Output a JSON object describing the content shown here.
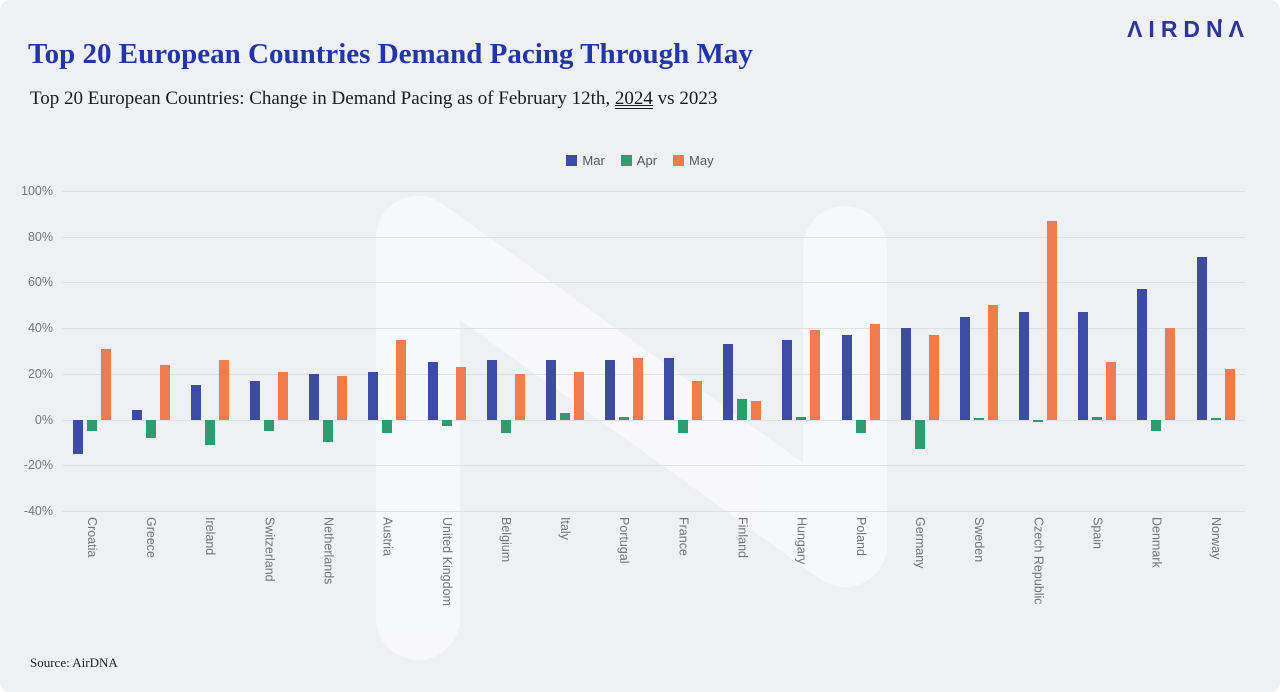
{
  "header": {
    "logo_text": "ΛIRDNΛ",
    "title": "Top 20 European Countries Demand Pacing Through May"
  },
  "subtitle": {
    "prefix": "Top 20 European Countries: Change in Demand Pacing as of February 12th, ",
    "underlined": "2024",
    "suffix": " vs 2023"
  },
  "footer": {
    "source": "Source: AirDNA"
  },
  "chart_data": {
    "type": "bar",
    "title": "Top 20 European Countries Demand Pacing Through May",
    "subtitle": "Top 20 European Countries: Change in Demand Pacing as of February 12th, 2024 vs 2023",
    "categories": [
      "Croatia",
      "Greece",
      "Ireland",
      "Switzerland",
      "Netherlands",
      "Austria",
      "United Kingdom",
      "Belgium",
      "Italy",
      "Portugal",
      "France",
      "Finland",
      "Hungary",
      "Poland",
      "Germany",
      "Sweden",
      "Czech Republic",
      "Spain",
      "Denmark",
      "Norway"
    ],
    "series": [
      {
        "name": "Mar",
        "color": "#3c4ba3",
        "values": [
          -15,
          4,
          15,
          17,
          20,
          21,
          25,
          26,
          26,
          26,
          27,
          33,
          35,
          37,
          40,
          45,
          47,
          47,
          57,
          71
        ]
      },
      {
        "name": "Apr",
        "color": "#2e9c6e",
        "values": [
          -5,
          -8,
          -11,
          -5,
          -10,
          -6,
          -3,
          -6,
          3,
          1,
          -6,
          9,
          1,
          -6,
          -13,
          0.5,
          -1,
          1,
          -5,
          0.5
        ]
      },
      {
        "name": "May",
        "color": "#f07c4d",
        "values": [
          31,
          24,
          26,
          21,
          19,
          35,
          23,
          20,
          21,
          27,
          17,
          8,
          39,
          42,
          37,
          50,
          87,
          25,
          40,
          22
        ]
      }
    ],
    "ylim": [
      -40,
      100
    ],
    "y_ticks": [
      100,
      80,
      60,
      40,
      20,
      0,
      -20,
      -40
    ],
    "y_tick_format": "percent",
    "xlabel": "",
    "ylabel": "",
    "grid": "horizontal",
    "legend_position": "top-center"
  }
}
